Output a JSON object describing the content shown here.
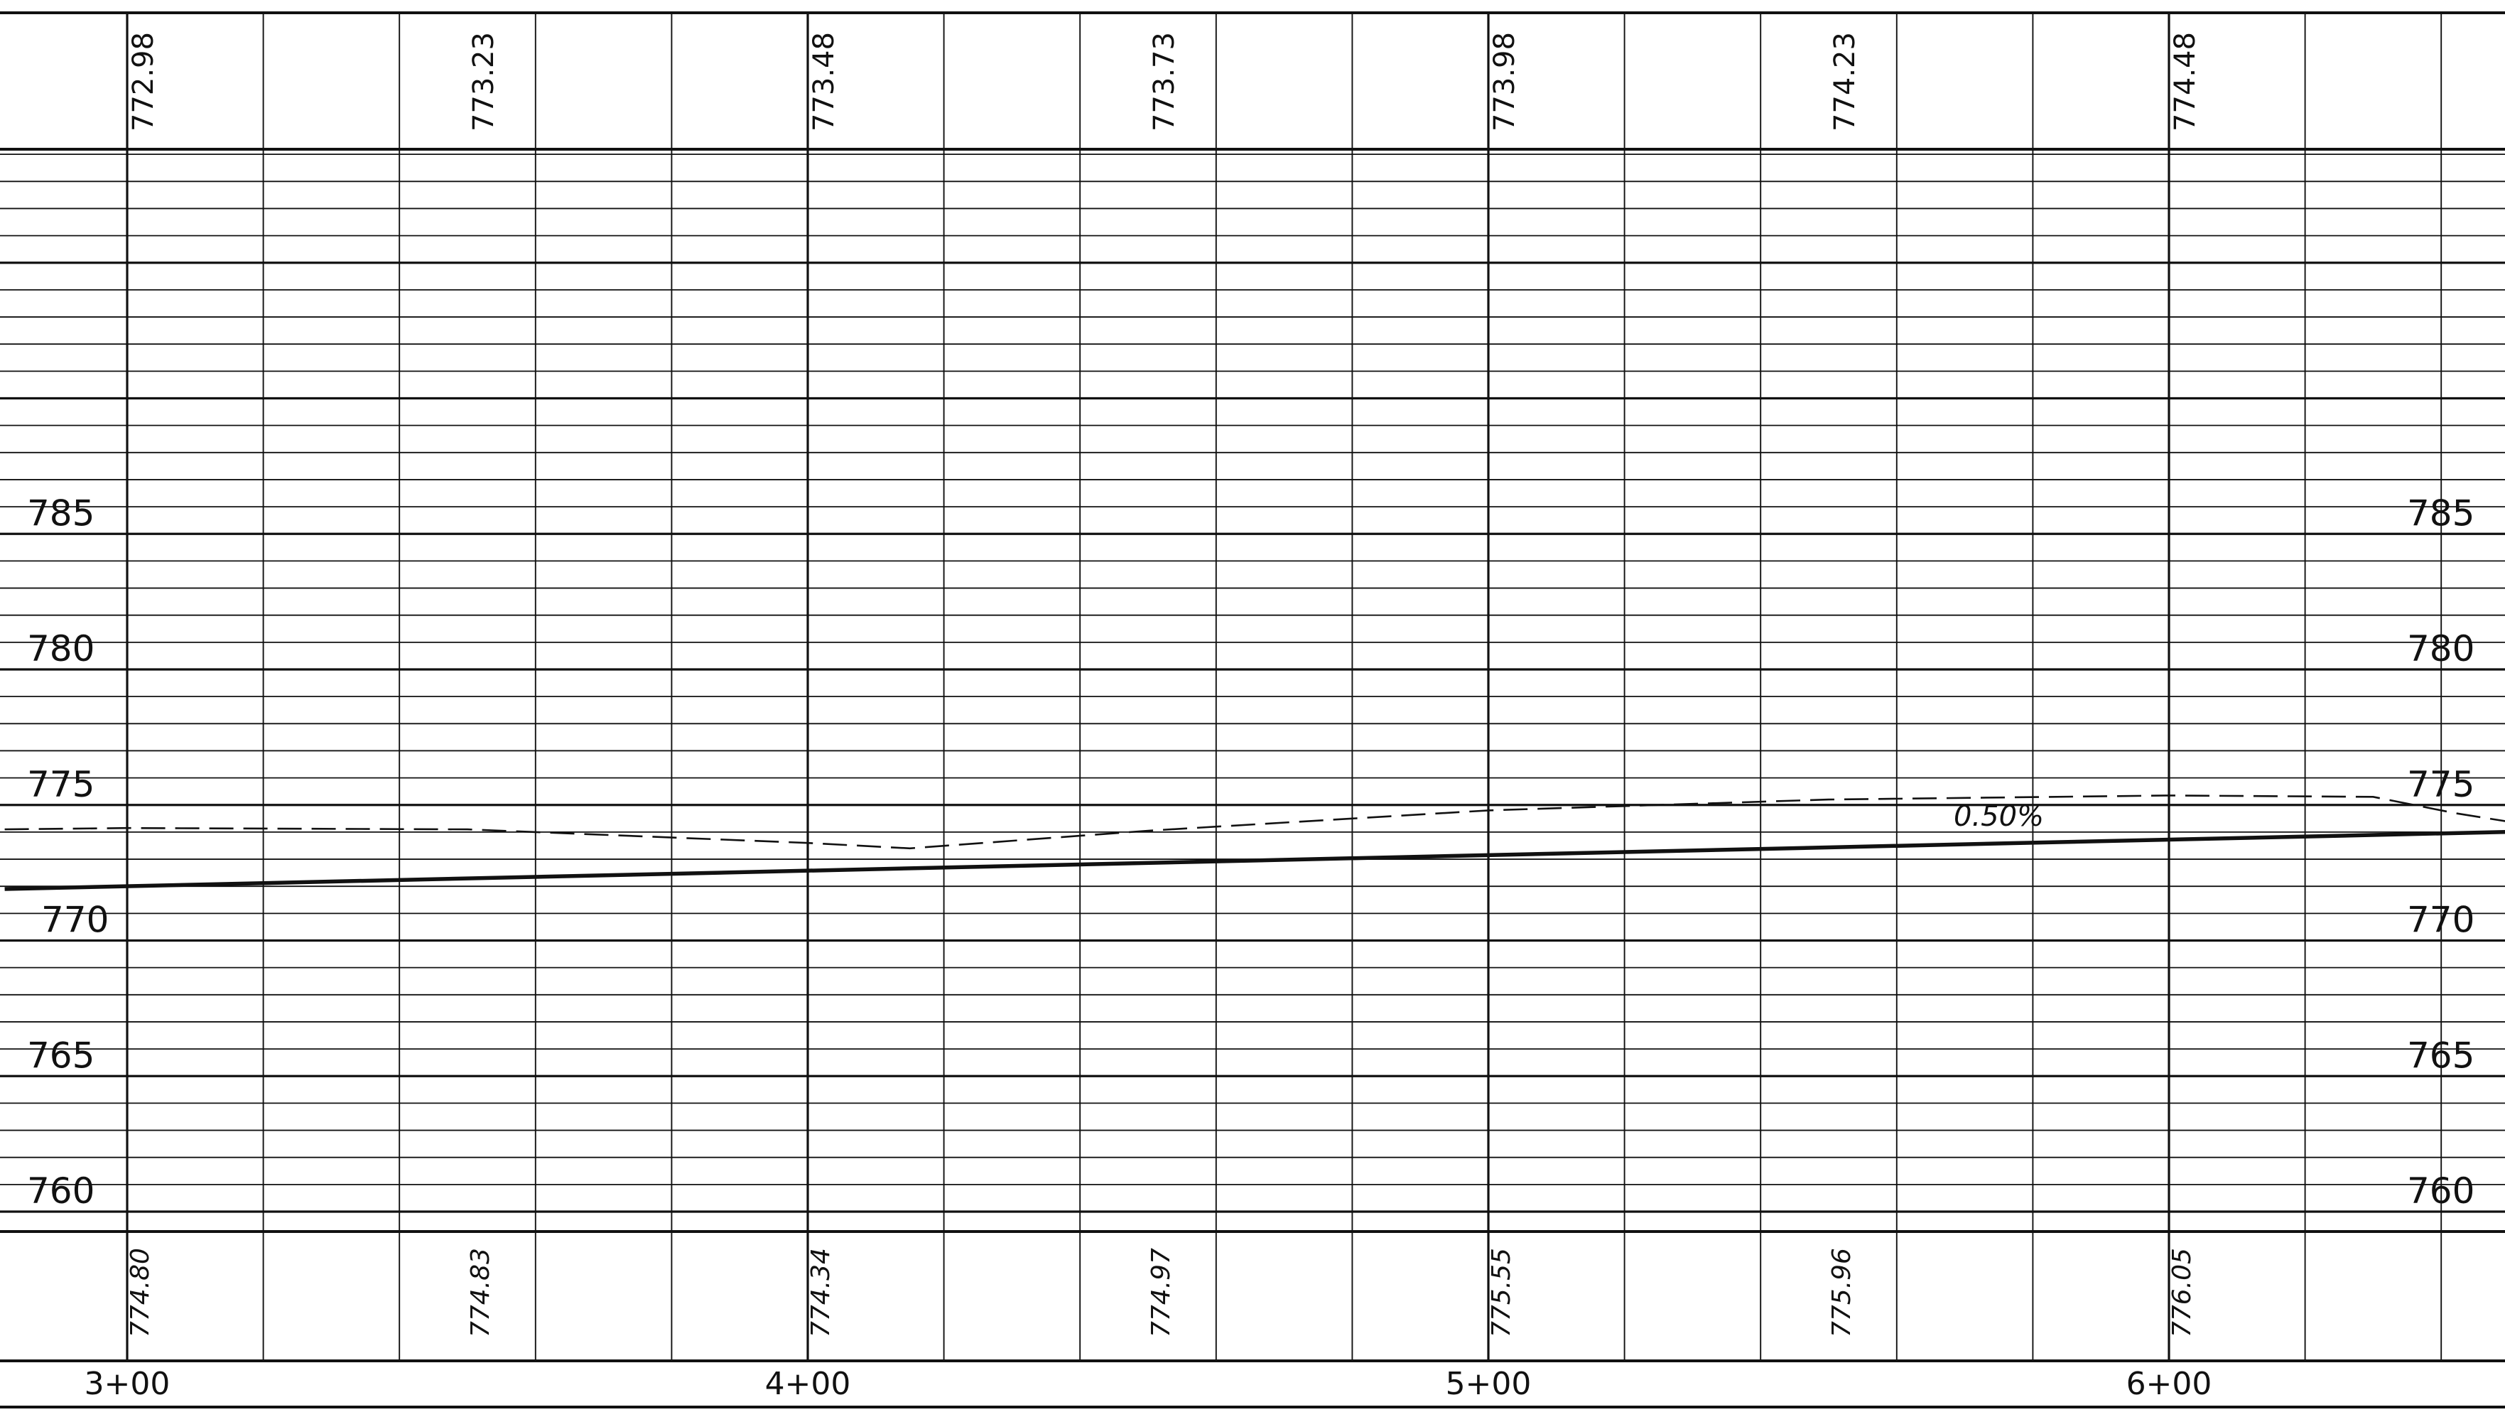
{
  "chart_data": {
    "type": "line",
    "title": "",
    "xlabel": "",
    "ylabel": "",
    "x_ticks": [
      "3+00",
      "4+00",
      "5+00",
      "6+00"
    ],
    "xlim": [
      282,
      666
    ],
    "ylim": [
      760,
      800
    ],
    "y_ticks_left": [
      "785",
      "780",
      "775",
      "770",
      "765",
      "760"
    ],
    "y_ticks_right": [
      "785",
      "780",
      "775",
      "770",
      "765",
      "760"
    ],
    "grid": true,
    "top_band": {
      "stations": [
        300,
        350,
        400,
        450,
        500,
        550,
        600
      ],
      "labels": [
        "772.98",
        "773.23",
        "773.48",
        "773.73",
        "773.98",
        "774.23",
        "774.48"
      ]
    },
    "bottom_band": {
      "stations": [
        300,
        350,
        400,
        450,
        500,
        550,
        600
      ],
      "labels": [
        "774.80",
        "774.83",
        "774.34",
        "774.97",
        "775.55",
        "775.96",
        "776.05"
      ]
    },
    "grade_annotation": {
      "text": "0.50%",
      "station": 575,
      "elevation": 774.5
    },
    "series": [
      {
        "role": "proposed-grade",
        "style": "solid",
        "x": [
          282,
          666
        ],
        "y": [
          771.9,
          774.1
        ]
      },
      {
        "role": "existing-ground",
        "style": "dashed",
        "x": [
          282,
          300,
          350,
          400,
          415,
          450,
          500,
          550,
          600,
          630,
          642,
          652,
          666
        ],
        "y": [
          774.1,
          774.15,
          774.1,
          773.6,
          773.4,
          774.05,
          774.8,
          775.2,
          775.35,
          775.3,
          774.7,
          774.3,
          774.55
        ]
      }
    ]
  }
}
